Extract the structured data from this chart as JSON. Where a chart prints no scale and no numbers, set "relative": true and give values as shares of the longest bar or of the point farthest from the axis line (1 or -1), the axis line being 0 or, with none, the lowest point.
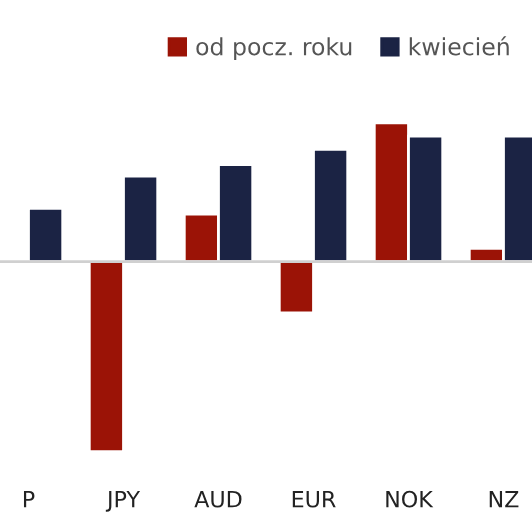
{
  "chart_data": {
    "type": "bar",
    "relative": true,
    "categories": [
      "P",
      "JPY",
      "AUD",
      "EUR",
      "NOK",
      "NZ"
    ],
    "series": [
      {
        "name": "od pocz. roku",
        "color": "#9b1306",
        "values": [
          null,
          -1,
          0.25,
          -0.27,
          0.73,
          0.07
        ]
      },
      {
        "name": "kwiecień",
        "color": "#1b2344",
        "values": [
          0.28,
          0.45,
          0.51,
          0.59,
          0.66,
          0.66
        ]
      }
    ],
    "legend": "top right",
    "grid": false
  }
}
